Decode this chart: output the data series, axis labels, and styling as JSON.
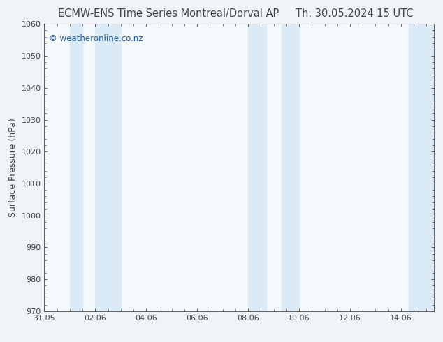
{
  "title_left": "ECMW-ENS Time Series Montreal/Dorval AP",
  "title_right": "Th. 30.05.2024 15 UTC",
  "ylabel": "Surface Pressure (hPa)",
  "ylim": [
    970,
    1060
  ],
  "yticks": [
    970,
    980,
    990,
    1000,
    1010,
    1020,
    1030,
    1040,
    1050,
    1060
  ],
  "xtick_labels": [
    "31.05",
    "02.06",
    "04.06",
    "06.06",
    "08.06",
    "10.06",
    "12.06",
    "14.06"
  ],
  "xtick_positions": [
    0,
    2,
    4,
    6,
    8,
    10,
    12,
    14
  ],
  "xlim": [
    0,
    15.3
  ],
  "shaded_bands": [
    {
      "x_start": 1.0,
      "x_end": 1.5
    },
    {
      "x_start": 2.0,
      "x_end": 3.0
    },
    {
      "x_start": 8.0,
      "x_end": 8.7
    },
    {
      "x_start": 9.3,
      "x_end": 10.0
    },
    {
      "x_start": 14.3,
      "x_end": 15.3
    }
  ],
  "shaded_color": "#daeaf7",
  "figure_bg": "#f0f4f8",
  "axes_bg": "#f5f9fc",
  "watermark_text": "© weatheronline.co.nz",
  "watermark_color": "#1a5fa8",
  "axes_color": "#444444",
  "tick_color": "#444444",
  "title_fontsize": 10.5,
  "ylabel_fontsize": 9,
  "watermark_fontsize": 8.5,
  "tick_labelsize": 8
}
